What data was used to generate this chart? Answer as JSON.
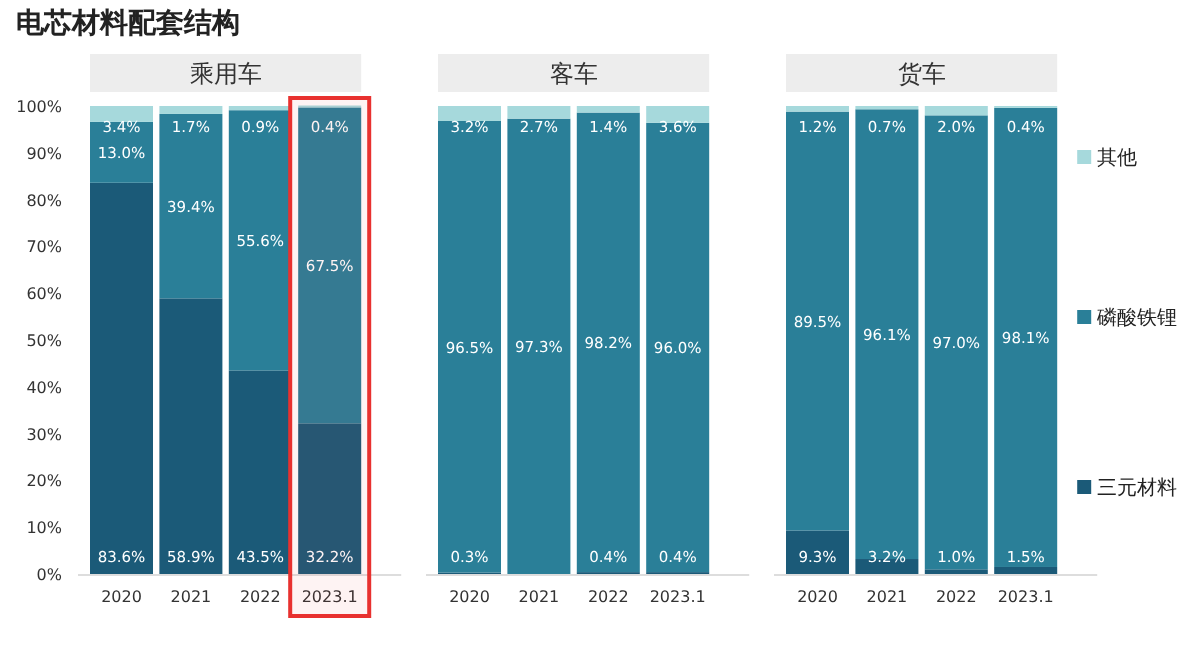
{
  "chart_data": [
    {
      "type": "bar",
      "stacked": true,
      "title": "电芯材料配套结构",
      "subtitle": "乘用车",
      "categories": [
        "2020",
        "2021",
        "2022",
        "2023.1"
      ],
      "series": [
        {
          "color": "#1b5a78",
          "values": [
            83.6,
            58.9,
            43.5,
            32.2
          ],
          "value_labels": [
            "83.6%",
            "58.9%",
            "43.5%",
            "32.2%"
          ]
        },
        {
          "color": "#2a7f98",
          "values": [
            13.0,
            39.4,
            55.6,
            67.5
          ],
          "value_labels": [
            "13.0%",
            "39.4%",
            "55.6%",
            "67.5%"
          ]
        },
        {
          "color": "#a6d9dc",
          "values": [
            3.4,
            1.7,
            0.9,
            0.4
          ],
          "value_labels": [
            "3.4%",
            "1.7%",
            "0.9%",
            "0.4%"
          ]
        }
      ],
      "bands": [
        {
          "axis": "x",
          "from": "2023.1",
          "to": "2023.1",
          "color": "#e8312f"
        }
      ],
      "ylim": [
        0,
        100
      ],
      "yticks": [
        {
          "value": 0,
          "label": "0%"
        },
        {
          "value": 10,
          "label": "10%"
        },
        {
          "value": 20,
          "label": "20%"
        },
        {
          "value": 30,
          "label": "30%"
        },
        {
          "value": 40,
          "label": "40%"
        },
        {
          "value": 50,
          "label": "50%"
        },
        {
          "value": 60,
          "label": "60%"
        },
        {
          "value": 70,
          "label": "70%"
        },
        {
          "value": 80,
          "label": "80%"
        },
        {
          "value": 90,
          "label": "90%"
        },
        {
          "value": 100,
          "label": "100%"
        }
      ]
    },
    {
      "type": "bar",
      "stacked": true,
      "subtitle": "客车",
      "categories": [
        "2020",
        "2021",
        "2022",
        "2023.1"
      ],
      "series": [
        {
          "color": "#1b5a78",
          "values": [
            0.3,
            0,
            0.4,
            0.4
          ],
          "value_labels": [
            "0.3%",
            null,
            "0.4%",
            "0.4%"
          ]
        },
        {
          "color": "#2a7f98",
          "values": [
            96.5,
            97.3,
            98.2,
            96.0
          ],
          "value_labels": [
            "96.5%",
            "97.3%",
            "98.2%",
            "96.0%"
          ]
        },
        {
          "color": "#a6d9dc",
          "values": [
            3.2,
            2.7,
            1.4,
            3.6
          ],
          "value_labels": [
            "3.2%",
            "2.7%",
            "1.4%",
            "3.6%"
          ]
        }
      ],
      "ylim": [
        0,
        100
      ],
      "tick_labels": "x"
    },
    {
      "type": "bar",
      "stacked": true,
      "subtitle": "货车",
      "categories": [
        "2020",
        "2021",
        "2022",
        "2023.1"
      ],
      "series": [
        {
          "name": "三元材料",
          "color": "#1b5a78",
          "values": [
            9.3,
            3.2,
            1.0,
            1.5
          ],
          "value_labels": [
            "9.3%",
            "3.2%",
            "1.0%",
            "1.5%"
          ]
        },
        {
          "name": "磷酸铁锂",
          "color": "#2a7f98",
          "values": [
            89.5,
            96.1,
            97.0,
            98.1
          ],
          "value_labels": [
            "89.5%",
            "96.1%",
            "97.0%",
            "98.1%"
          ]
        },
        {
          "name": "其他",
          "color": "#a6d9dc",
          "values": [
            1.2,
            0.7,
            2.0,
            0.4
          ],
          "value_labels": [
            "1.2%",
            "0.7%",
            "2.0%",
            "0.4%"
          ]
        }
      ],
      "ylim": [
        0,
        100
      ],
      "tick_labels": "x",
      "legend": "right"
    }
  ]
}
